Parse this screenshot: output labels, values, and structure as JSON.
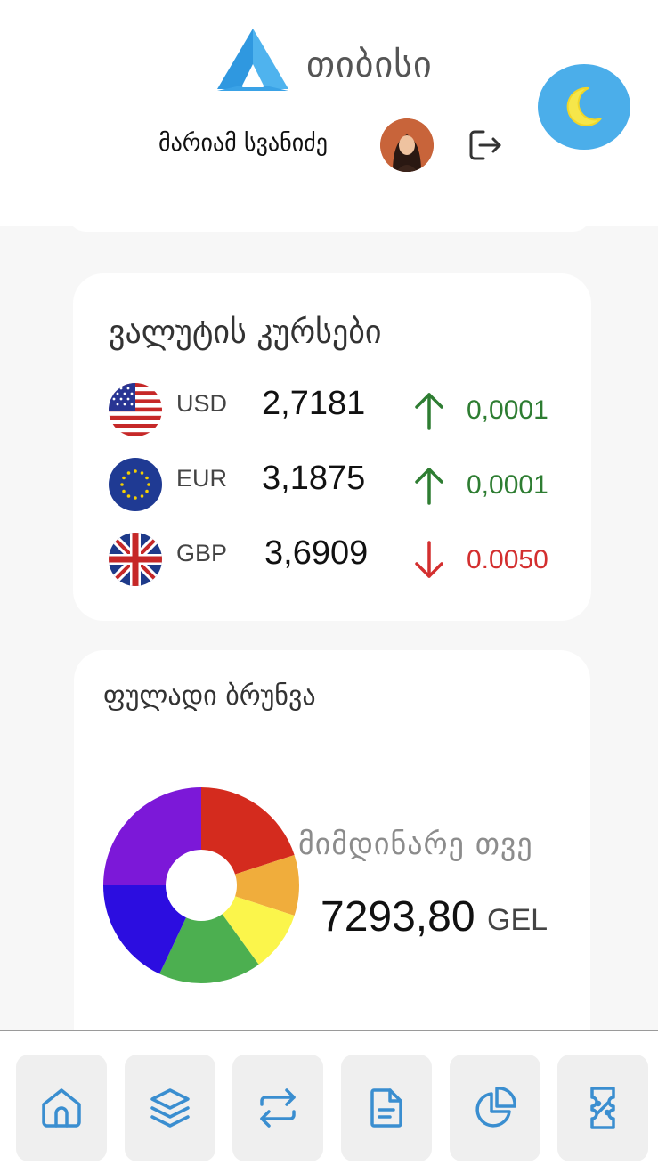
{
  "header": {
    "brand_name": "თიბისი",
    "user_name": "მარიამ სვანიძე",
    "logo_icon": "tbc-logo-icon",
    "theme_icon": "moon-icon",
    "logout_icon": "logout-icon",
    "accent_color": "#4baeea"
  },
  "rates": {
    "title": "ვალუტის კურსები",
    "items": [
      {
        "code": "USD",
        "value": "2,7181",
        "direction": "up",
        "change": "0,0001",
        "flag_icon": "us-flag-icon"
      },
      {
        "code": "EUR",
        "value": "3,1875",
        "direction": "up",
        "change": "0,0001",
        "flag_icon": "eu-flag-icon"
      },
      {
        "code": "GBP",
        "value": "3,6909",
        "direction": "down",
        "change": "0.0050",
        "flag_icon": "uk-flag-icon"
      }
    ],
    "up_color": "#2e7d32",
    "down_color": "#d32f2f"
  },
  "cash_flow": {
    "title": "ფულადი ბრუნვა",
    "period_label": "მიმდინარე თვე",
    "amount": "7293,80",
    "currency": "GEL"
  },
  "chart_data": {
    "type": "pie",
    "title": "ფულადი ბრუნვა",
    "donut": true,
    "slices": [
      {
        "color": "#d42b1e",
        "percent": 20
      },
      {
        "color": "#f0ad3c",
        "percent": 10
      },
      {
        "color": "#fbf54b",
        "percent": 10
      },
      {
        "color": "#4caf50",
        "percent": 17
      },
      {
        "color": "#2c0de0",
        "percent": 18
      },
      {
        "color": "#7c18d8",
        "percent": 25
      }
    ]
  },
  "nav": {
    "items": [
      {
        "name": "home",
        "icon": "home-icon"
      },
      {
        "name": "products",
        "icon": "layers-icon"
      },
      {
        "name": "transfers",
        "icon": "transfer-arrows-icon"
      },
      {
        "name": "documents",
        "icon": "document-icon"
      },
      {
        "name": "analytics",
        "icon": "pie-chart-icon"
      },
      {
        "name": "offers",
        "icon": "coupon-icon"
      }
    ],
    "icon_color": "#3a8ed0"
  }
}
